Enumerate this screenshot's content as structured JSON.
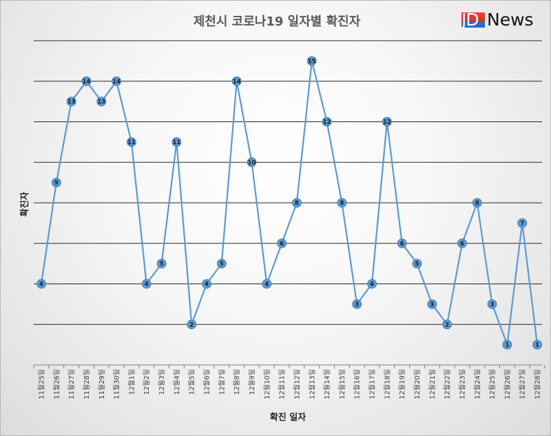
{
  "logo": {
    "text_a": "JD",
    "text_b": "News"
  },
  "chart_data": {
    "type": "line",
    "title": "제천시 코로나19 일자별 확진자",
    "xlabel": "확진 일자",
    "ylabel": "확진자",
    "ylim": [
      0,
      16
    ],
    "grid": true,
    "line_color": "#5b9bd5",
    "marker_color": "#5b9bd5",
    "categories": [
      "11월25일",
      "11월26일",
      "11월27일",
      "11월28일",
      "11월29일",
      "11월30일",
      "12월1일",
      "12월2일",
      "12월3일",
      "12월4일",
      "12월5일",
      "12월6일",
      "12월7일",
      "12월8일",
      "12월9일",
      "12월10일",
      "12월11일",
      "12월12일",
      "12월13일",
      "12월14일",
      "12월15일",
      "12월16일",
      "12월17일",
      "12월18일",
      "12월19일",
      "12월20일",
      "12월21일",
      "12월22일",
      "12월23일",
      "12월24일",
      "12월25일",
      "12월26일",
      "12월27일",
      "12월28일"
    ],
    "values": [
      4,
      9,
      13,
      14,
      13,
      14,
      11,
      4,
      5,
      11,
      2,
      4,
      5,
      14,
      10,
      4,
      6,
      8,
      15,
      12,
      8,
      3,
      4,
      12,
      6,
      5,
      3,
      2,
      6,
      8,
      3,
      1,
      7,
      1
    ]
  }
}
